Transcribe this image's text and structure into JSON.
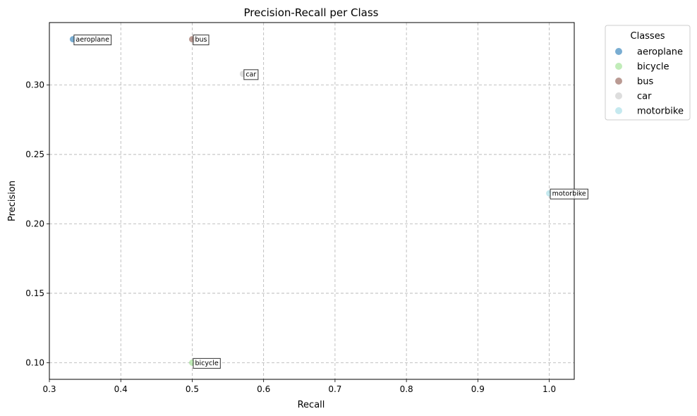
{
  "chart_data": {
    "type": "scatter",
    "title": "Precision-Recall per Class",
    "xlabel": "Recall",
    "ylabel": "Precision",
    "xlim": [
      0.3,
      1.035
    ],
    "ylim": [
      0.088,
      0.345
    ],
    "xticks": [
      0.3,
      0.4,
      0.5,
      0.6,
      0.7,
      0.8,
      0.9,
      1.0
    ],
    "xtick_labels": [
      "0.3",
      "0.4",
      "0.5",
      "0.6",
      "0.7",
      "0.8",
      "0.9",
      "1.0"
    ],
    "yticks": [
      0.1,
      0.15,
      0.2,
      0.25,
      0.3
    ],
    "ytick_labels": [
      "0.10",
      "0.15",
      "0.20",
      "0.25",
      "0.30"
    ],
    "grid": true,
    "legend_title": "Classes",
    "legend_placement": "outside-top-right",
    "series": [
      {
        "name": "aeroplane",
        "x": 0.333,
        "y": 0.333,
        "color": "#1f77b4"
      },
      {
        "name": "bicycle",
        "x": 0.5,
        "y": 0.1,
        "color": "#98df8a"
      },
      {
        "name": "bus",
        "x": 0.5,
        "y": 0.333,
        "color": "#8c564b"
      },
      {
        "name": "car",
        "x": 0.571,
        "y": 0.308,
        "color": "#c7c7c7"
      },
      {
        "name": "motorbike",
        "x": 1.0,
        "y": 0.222,
        "color": "#9edae5"
      }
    ]
  }
}
